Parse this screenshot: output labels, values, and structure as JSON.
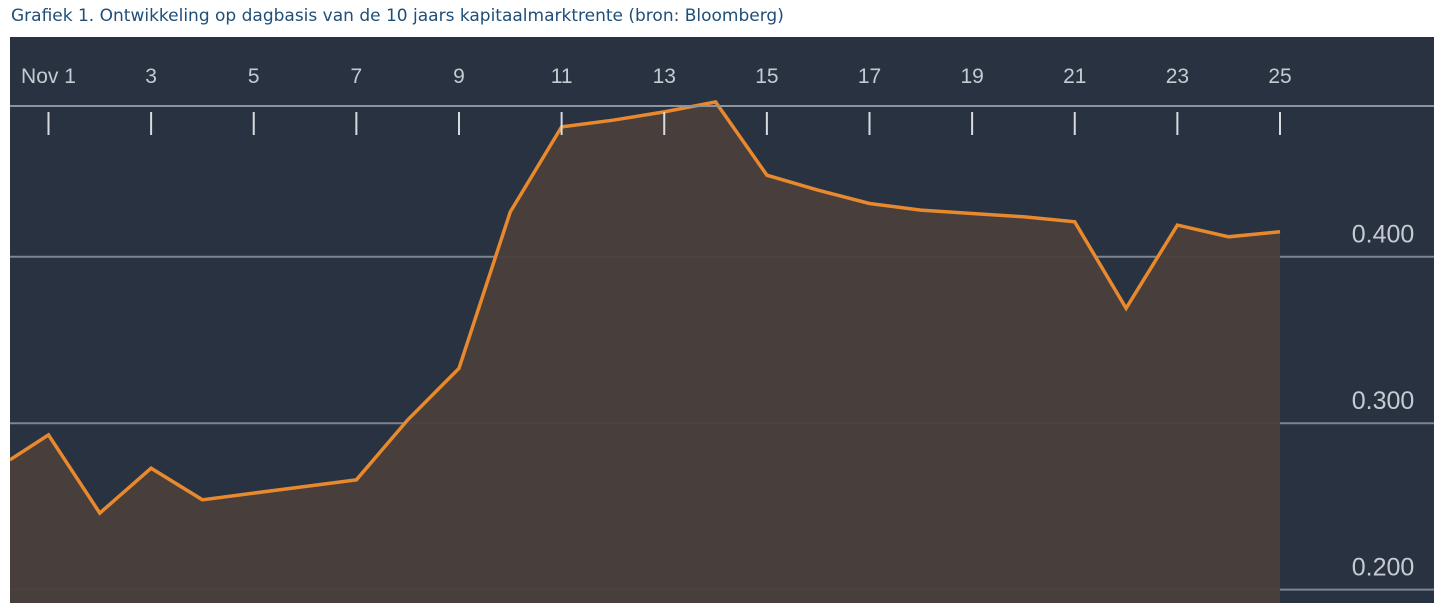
{
  "caption": "Grafiek 1. Ontwikkeling op dagbasis van de 10 jaars kapitaalmarktrente (bron: Bloomberg)",
  "colors": {
    "background": "#283241",
    "line": "#e8892d",
    "area": "#4a3f3b",
    "grid": "#8d949c",
    "text": "#c6cbd1",
    "caption": "#1f4e79"
  },
  "chart_data": {
    "type": "area",
    "title": "",
    "xlabel": "",
    "ylabel": "",
    "x_tick_labels": [
      "Nov 1",
      "3",
      "5",
      "7",
      "9",
      "11",
      "13",
      "15",
      "17",
      "19",
      "21",
      "23",
      "25"
    ],
    "x_tick_positions": [
      1,
      3,
      5,
      7,
      9,
      11,
      13,
      15,
      17,
      19,
      21,
      23,
      25
    ],
    "y_tick_labels": [
      "0.400",
      "0.300",
      "0.200"
    ],
    "y_tick_values": [
      0.4,
      0.3,
      0.2
    ],
    "xlim": [
      0.25,
      25
    ],
    "ylim": [
      0.192,
      0.532
    ],
    "x_axis_position": "top",
    "y_axis_position": "right",
    "grid": "horizontal",
    "legend": "none",
    "series": [
      {
        "x": [
          0.25,
          1,
          2,
          3,
          4,
          5,
          6,
          7,
          8,
          9,
          10,
          11,
          12,
          13,
          14,
          15,
          16,
          17,
          18,
          19,
          20,
          21,
          22,
          23,
          24,
          25
        ],
        "values": [
          0.278,
          0.293,
          0.246,
          0.273,
          0.254,
          0.258,
          0.262,
          0.266,
          0.302,
          0.333,
          0.427,
          0.478,
          0.482,
          0.487,
          0.493,
          0.449,
          0.44,
          0.432,
          0.428,
          0.426,
          0.424,
          0.421,
          0.369,
          0.419,
          0.412,
          0.415
        ]
      }
    ]
  }
}
